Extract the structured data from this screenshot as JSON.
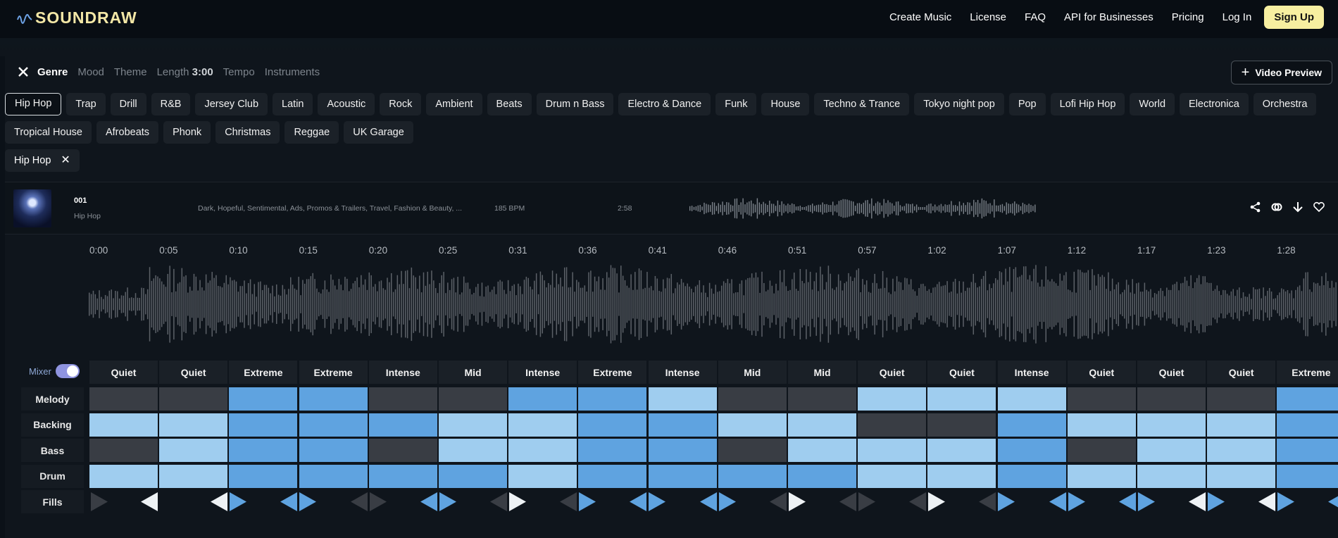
{
  "nav": {
    "logo": "SOUNDRAW",
    "links": [
      "Create Music",
      "License",
      "FAQ",
      "API for Businesses",
      "Pricing",
      "Log In"
    ],
    "signup": "Sign Up"
  },
  "filters": {
    "tabs": [
      "Genre",
      "Mood",
      "Theme"
    ],
    "length_label": "Length",
    "length_value": "3:00",
    "tabs2": [
      "Tempo",
      "Instruments"
    ],
    "video_preview": "Video Preview"
  },
  "genres_row1": [
    "Hip Hop",
    "Trap",
    "Drill",
    "R&B",
    "Jersey Club",
    "Latin",
    "Acoustic",
    "Rock",
    "Ambient",
    "Beats",
    "Drum n Bass",
    "Electro & Dance",
    "Funk",
    "House",
    "Techno & Trance",
    "Tokyo night pop",
    "Pop",
    "Lofi Hip Hop",
    "World",
    "Electronica",
    "Orchestra"
  ],
  "genres_row2": [
    "Tropical House",
    "Afrobeats",
    "Phonk",
    "Christmas",
    "Reggae",
    "UK Garage"
  ],
  "selected_genre": "Hip Hop",
  "track": {
    "number": "001",
    "genre": "Hip Hop",
    "tags": "Dark, Hopeful, Sentimental, Ads, Promos & Trailers, Travel, Fashion & Beauty, ...",
    "bpm": "185 BPM",
    "duration": "2:58"
  },
  "timeline": [
    "0:00",
    "0:05",
    "0:10",
    "0:15",
    "0:20",
    "0:25",
    "0:31",
    "0:36",
    "0:41",
    "0:46",
    "0:51",
    "0:57",
    "1:02",
    "1:07",
    "1:12",
    "1:17",
    "1:23",
    "1:28"
  ],
  "mixer": {
    "label": "Mixer",
    "enabled": true,
    "row_labels": [
      "Melody",
      "Backing",
      "Bass",
      "Drum",
      "Fills"
    ],
    "energy": [
      "Quiet",
      "Quiet",
      "Extreme",
      "Extreme",
      "Intense",
      "Mid",
      "Intense",
      "Extreme",
      "Intense",
      "Mid",
      "Mid",
      "Quiet",
      "Quiet",
      "Intense",
      "Quiet",
      "Quiet",
      "Quiet",
      "Extreme"
    ],
    "levels": {
      "melody": [
        0,
        0,
        2,
        2,
        0,
        0,
        2,
        2,
        1,
        0,
        0,
        1,
        1,
        1,
        0,
        0,
        0,
        2
      ],
      "backing": [
        1,
        1,
        2,
        2,
        2,
        1,
        1,
        2,
        2,
        1,
        1,
        0,
        0,
        2,
        1,
        1,
        1,
        2
      ],
      "bass": [
        0,
        1,
        2,
        2,
        0,
        1,
        1,
        2,
        2,
        0,
        1,
        1,
        1,
        2,
        0,
        1,
        1,
        2
      ],
      "drum": [
        1,
        1,
        2,
        2,
        2,
        2,
        1,
        2,
        2,
        2,
        2,
        1,
        1,
        2,
        1,
        1,
        1,
        2
      ]
    },
    "fills": [
      [
        "dark",
        "white"
      ],
      [
        "white",
        "blue"
      ],
      [
        "blue",
        "blue"
      ],
      [
        "dark",
        "dark"
      ],
      [
        "blue",
        "blue"
      ],
      [
        "dark",
        "white"
      ],
      [
        "dark",
        "blue"
      ],
      [
        "blue",
        "blue"
      ],
      [
        "blue",
        "blue"
      ],
      [
        "dark",
        "white"
      ],
      [
        "dark",
        "dark"
      ],
      [
        "dark",
        "white"
      ],
      [
        "dark",
        "blue"
      ],
      [
        "blue",
        "blue"
      ],
      [
        "blue",
        "blue"
      ],
      [
        "white",
        "blue"
      ],
      [
        "white",
        "blue"
      ],
      [
        "blue",
        "blue"
      ]
    ],
    "colors": {
      "quiet_cell": "#393d44",
      "light_cell": "#9fcdef",
      "strong_cell": "#5fa3e0"
    }
  }
}
